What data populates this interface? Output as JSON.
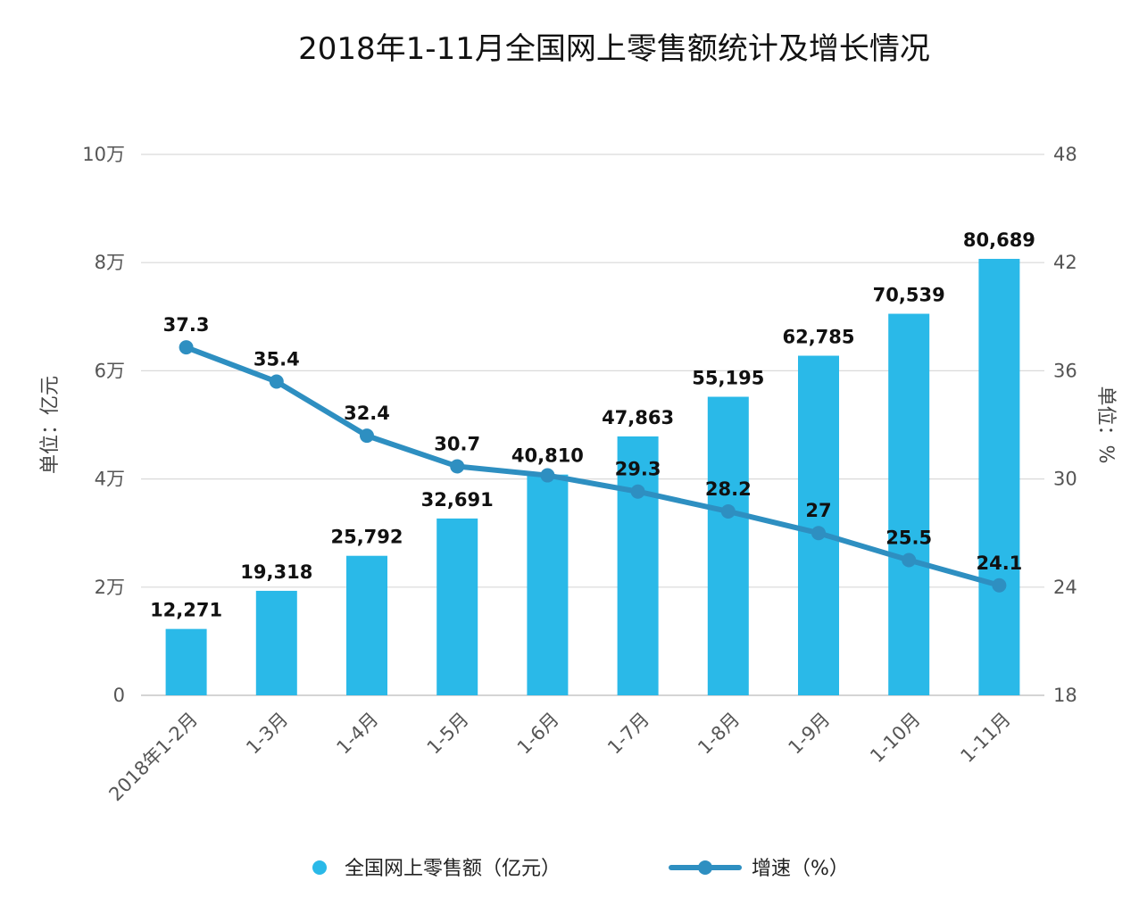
{
  "chart_data": {
    "type": "bar",
    "title": "2018年1-11月全国网上零售额统计及增长情况",
    "categories": [
      "2018年1-2月",
      "1-3月",
      "1-4月",
      "1-5月",
      "1-6月",
      "1-7月",
      "1-8月",
      "1-9月",
      "1-10月",
      "1-11月"
    ],
    "series": [
      {
        "name": "全国网上零售额（亿元）",
        "type": "bar",
        "axis": "left",
        "values": [
          12271,
          19318,
          25792,
          32691,
          40810,
          47863,
          55195,
          62785,
          70539,
          80689
        ],
        "labels": [
          "12,271",
          "19,318",
          "25,792",
          "32,691",
          "40,810",
          "47,863",
          "55,195",
          "62,785",
          "70,539",
          "80,689"
        ]
      },
      {
        "name": "增速（%）",
        "type": "line",
        "axis": "right",
        "values": [
          37.3,
          35.4,
          32.4,
          30.7,
          30.2,
          29.3,
          28.2,
          27,
          25.5,
          24.1
        ],
        "labels": [
          "37.3",
          "35.4",
          "32.4",
          "30.7",
          "",
          "29.3",
          "28.2",
          "27",
          "25.5",
          "24.1"
        ]
      }
    ],
    "y_left": {
      "label": "单位：亿元",
      "ylim": [
        0,
        100000
      ],
      "ticks": [
        0,
        20000,
        40000,
        60000,
        80000,
        100000
      ],
      "tick_labels": [
        "0",
        "2万",
        "4万",
        "6万",
        "8万",
        "10万"
      ]
    },
    "y_right": {
      "label": "单位：%",
      "ylim": [
        18,
        48
      ],
      "ticks": [
        18,
        24,
        30,
        36,
        42,
        48
      ],
      "tick_labels": [
        "18",
        "24",
        "30",
        "36",
        "42",
        "48"
      ]
    },
    "grid": true,
    "legend_position": "bottom",
    "colors": {
      "bar": "#2ab9e8",
      "line": "#2e8fc1",
      "grid": "#d9d9d9",
      "axis": "#bbbbbb"
    }
  }
}
